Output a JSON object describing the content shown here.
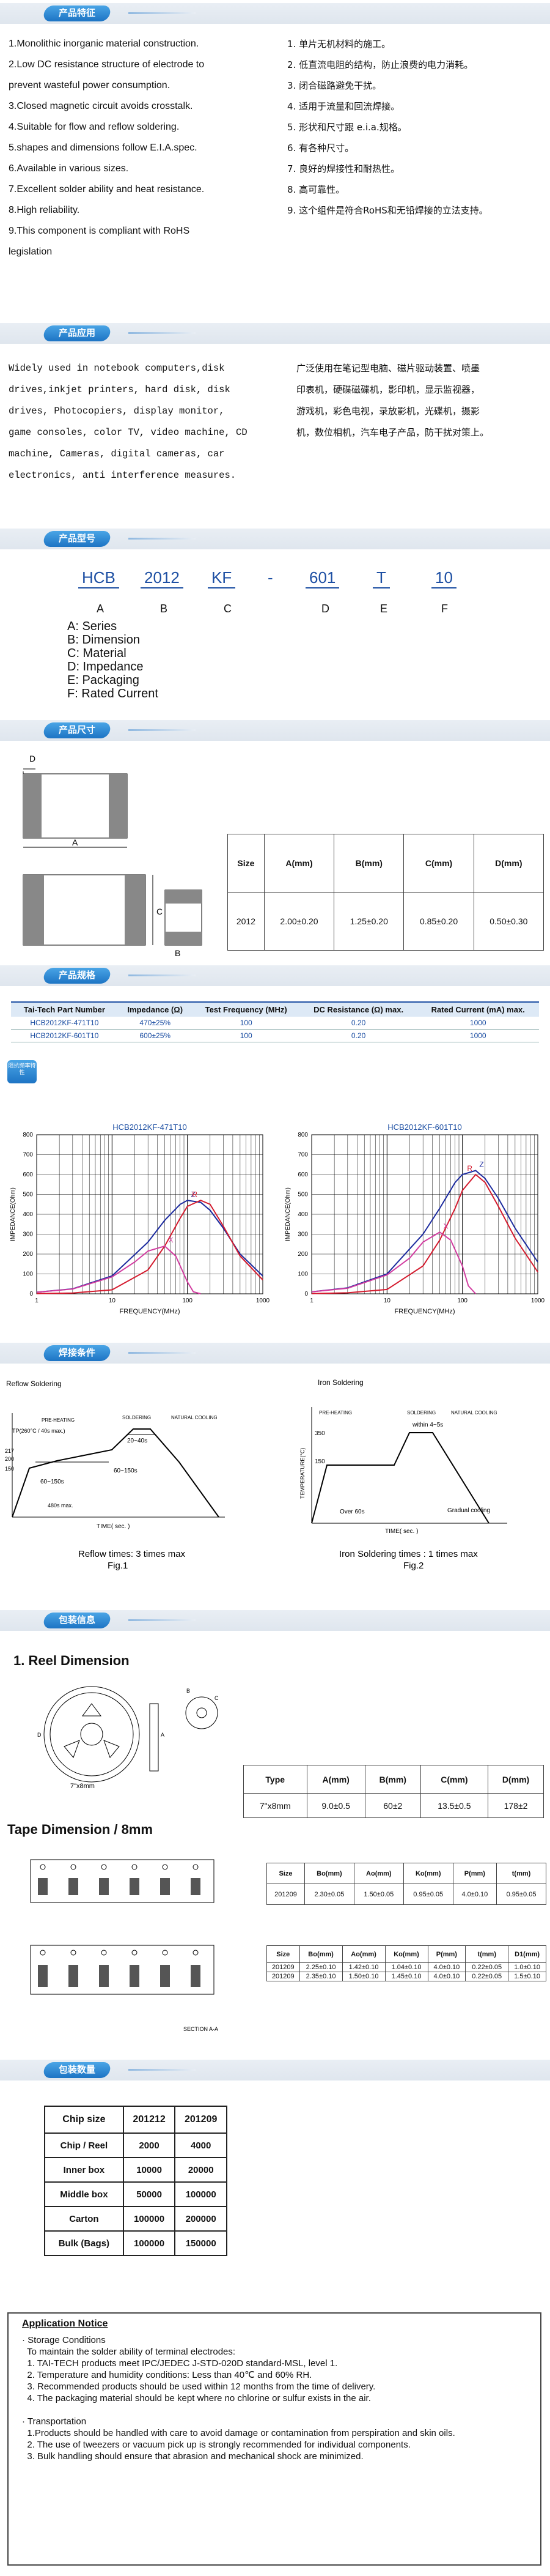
{
  "sections": {
    "features": "产品特征",
    "application": "产品应用",
    "part_number": "产品型号",
    "dimensions": "产品尺寸",
    "specification": "产品规格",
    "soldering": "焊接条件",
    "packaging": "包装信息",
    "quantity": "包装数量"
  },
  "features_en": [
    "1.Monolithic inorganic material construction.",
    "2.Low DC resistance structure of electrode to",
    "prevent wasteful power consumption.",
    "3.Closed magnetic circuit avoids crosstalk.",
    "4.Suitable for flow and reflow soldering.",
    "5.shapes and dimensions follow E.I.A.spec.",
    "6.Available in various sizes.",
    "7.Excellent solder ability and heat resistance.",
    "8.High reliability.",
    "9.This  component  is  compliant  with  RoHS",
    "legislation"
  ],
  "features_cn": [
    "1. 单片无机材料的施工。",
    "2. 低直流电阻的结构，防止浪费的电力消耗。",
    "3. 闭合磁路避免干扰。",
    "4. 适用于流量和回流焊接。",
    "5. 形状和尺寸跟 e.i.a.规格。",
    "6. 有各种尺寸。",
    "7. 良好的焊接性和耐热性。",
    "8. 高可靠性。",
    "9. 这个组件是符合RoHS和无铅焊接的立法支持。"
  ],
  "application_en": [
    "Widely used in notebook computers,disk",
    "drives,inkjet printers, hard disk, disk",
    "drives, Photocopiers, display monitor,",
    "game consoles, color TV, video machine, CD",
    "machine, Cameras, digital cameras, car",
    "electronics, anti interference measures."
  ],
  "application_cn": [
    "广泛使用在笔记型电脑、磁片驱动装置、喷墨",
    "印表机，硬碟磁碟机，影印机，显示监视器，",
    "游戏机，彩色电视，录放影机，光碟机，摄影",
    "机，数位相机，汽车电子产品，防干扰对策上。"
  ],
  "part_number": {
    "codes": [
      "HCB",
      "2012",
      "KF",
      "-",
      "601",
      "T",
      "10"
    ],
    "letters": [
      "A",
      "B",
      "C",
      "",
      "D",
      "E",
      "F"
    ],
    "legend": [
      "A: Series",
      "B: Dimension",
      "C: Material",
      "D: Impedance",
      "E: Packaging",
      "F: Rated Current"
    ]
  },
  "dimension_table": {
    "headers": [
      "Size",
      "A(mm)",
      "B(mm)",
      "C(mm)",
      "D(mm)"
    ],
    "row": [
      "2012",
      "2.00±0.20",
      "1.25±0.20",
      "0.85±0.20",
      "0.50±0.30"
    ],
    "labels": {
      "a": "A",
      "b": "B",
      "c": "C",
      "d": "D"
    }
  },
  "spec_table": {
    "headers": [
      "Tai-Tech Part Number",
      "Impedance (Ω)",
      "Test Frequency (MHz)",
      "DC Resistance (Ω) max.",
      "Rated Current (mA) max."
    ],
    "rows": [
      [
        "HCB2012KF-471T10",
        "470±25%",
        "100",
        "0.20",
        "1000"
      ],
      [
        "HCB2012KF-601T10",
        "600±25%",
        "100",
        "0.20",
        "1000"
      ]
    ]
  },
  "impedance_section_icon": "阻抗频率特性",
  "chart_data": [
    {
      "type": "line",
      "title": "HCB2012KF-471T10",
      "xlabel": "FREQUENCY(MHz)",
      "ylabel": "IMPEDANCE(Ohm)",
      "xscale": "log",
      "xlim": [
        1,
        1000
      ],
      "ylim": [
        0,
        800
      ],
      "xticks": [
        "1",
        "10",
        "100",
        "1000"
      ],
      "yticks": [
        "0",
        "100",
        "200",
        "300",
        "400",
        "500",
        "600",
        "700",
        "800"
      ],
      "series": [
        {
          "name": "Z",
          "color": "#1b2a9e",
          "x": [
            1,
            3,
            10,
            30,
            50,
            80,
            100,
            150,
            200,
            300,
            500,
            1000
          ],
          "y": [
            8,
            25,
            90,
            260,
            370,
            450,
            470,
            460,
            420,
            330,
            200,
            90
          ]
        },
        {
          "name": "R",
          "color": "#d41b2e",
          "x": [
            1,
            3,
            10,
            30,
            50,
            80,
            100,
            150,
            200,
            300,
            500,
            1000
          ],
          "y": [
            1,
            4,
            20,
            120,
            240,
            380,
            440,
            470,
            450,
            340,
            190,
            70
          ]
        },
        {
          "name": "X",
          "color": "#d23ca0",
          "x": [
            1,
            3,
            10,
            20,
            30,
            50,
            70,
            100,
            120,
            150
          ],
          "y": [
            8,
            24,
            85,
            160,
            215,
            240,
            190,
            60,
            10,
            0
          ]
        }
      ]
    },
    {
      "type": "line",
      "title": "HCB2012KF-601T10",
      "xlabel": "FREQUENCY(MHz)",
      "ylabel": "IMPEDANCE(Ohm)",
      "xscale": "log",
      "xlim": [
        1,
        1000
      ],
      "ylim": [
        0,
        800
      ],
      "xticks": [
        "1",
        "10",
        "100",
        "1000"
      ],
      "yticks": [
        "0",
        "100",
        "200",
        "300",
        "400",
        "500",
        "600",
        "700",
        "800"
      ],
      "series": [
        {
          "name": "Z",
          "color": "#1b2a9e",
          "x": [
            1,
            3,
            10,
            30,
            50,
            80,
            100,
            150,
            200,
            300,
            500,
            1000
          ],
          "y": [
            10,
            30,
            100,
            300,
            430,
            560,
            600,
            620,
            580,
            480,
            330,
            160
          ]
        },
        {
          "name": "R",
          "color": "#d41b2e",
          "x": [
            1,
            3,
            10,
            30,
            50,
            80,
            100,
            150,
            200,
            300,
            500,
            1000
          ],
          "y": [
            1,
            5,
            22,
            140,
            270,
            430,
            520,
            600,
            560,
            440,
            280,
            110
          ]
        },
        {
          "name": "X",
          "color": "#d23ca0",
          "x": [
            1,
            3,
            10,
            20,
            30,
            50,
            70,
            100,
            120,
            150
          ],
          "y": [
            10,
            28,
            95,
            180,
            260,
            310,
            270,
            140,
            40,
            0
          ]
        }
      ]
    }
  ],
  "chart_labels": {
    "z": "Z",
    "r": "R",
    "x": "X"
  },
  "reflow": {
    "title": "Reflow Soldering",
    "phases": [
      "PRE-HEATING",
      "SOLDERING",
      "NATURAL COOLING"
    ],
    "temps": [
      "TP(260°C / 40s max.)",
      "217",
      "200",
      "150"
    ],
    "times": [
      "20~40s",
      "60~150s",
      "60~150s",
      "480s max."
    ],
    "axis_y": "TEMPERATURE(°C)",
    "axis_x": "TIME( sec. )",
    "caption": "Reflow times: 3 times max",
    "fig": "Fig.1"
  },
  "iron": {
    "title": "Iron Soldering",
    "phases": [
      "PRE-HEATING",
      "SOLDERING",
      "NATURAL COOLING"
    ],
    "temps": [
      "350",
      "150"
    ],
    "times": [
      "within 4~5s",
      "Over 60s",
      "Gradual cooling"
    ],
    "axis_y": "TEMPERATURE(°C)",
    "axis_x": "TIME( sec. )",
    "caption": "Iron Soldering times : 1 times max",
    "fig": "Fig.2"
  },
  "reel": {
    "title": "1. Reel Dimension",
    "caption": "7\"x8mm",
    "headers": [
      "Type",
      "A(mm)",
      "B(mm)",
      "C(mm)",
      "D(mm)"
    ],
    "row": [
      "7\"x8mm",
      "9.0±0.5",
      "60±2",
      "13.5±0.5",
      "178±2"
    ],
    "reel_labels": {
      "a": "A",
      "b": "B",
      "c": "C",
      "d": "D"
    }
  },
  "tape": {
    "title": "Tape Dimension / 8mm",
    "table1": {
      "headers": [
        "Size",
        "Bo(mm)",
        "Ao(mm)",
        "Ko(mm)",
        "P(mm)",
        "t(mm)"
      ],
      "row": [
        "201209",
        "2.30±0.05",
        "1.50±0.05",
        "0.95±0.05",
        "4.0±0.10",
        "0.95±0.05"
      ]
    },
    "table2": {
      "headers": [
        "Size",
        "Bo(mm)",
        "Ao(mm)",
        "Ko(mm)",
        "P(mm)",
        "t(mm)",
        "D1(mm)"
      ],
      "rows": [
        [
          "201209",
          "2.25±0.10",
          "1.42±0.10",
          "1.04±0.10",
          "4.0±0.10",
          "0.22±0.05",
          "1.0±0.10"
        ],
        [
          "201209",
          "2.35±0.10",
          "1.50±0.10",
          "1.45±0.10",
          "4.0±0.10",
          "0.22±0.05",
          "1.5±0.10"
        ]
      ]
    },
    "section_label": "SECTION A-A"
  },
  "quantity_table": {
    "headers": [
      "Chip size",
      "201212",
      "201209"
    ],
    "rows": [
      [
        "Chip / Reel",
        "2000",
        "4000"
      ],
      [
        "Inner box",
        "10000",
        "20000"
      ],
      [
        "Middle box",
        "50000",
        "100000"
      ],
      [
        "Carton",
        "100000",
        "200000"
      ],
      [
        "Bulk (Bags)",
        "100000",
        "150000"
      ]
    ]
  },
  "notice": {
    "title": "Application Notice",
    "lines": [
      "· Storage Conditions",
      "  To maintain the solder ability of terminal electrodes:",
      "  1. TAI-TECH products meet IPC/JEDEC J-STD-020D standard-MSL, level 1.",
      "  2. Temperature and humidity conditions: Less than 40℃ and 60% RH.",
      "  3. Recommended products should be used within 12 months from the time of delivery.",
      "  4. The packaging material should be kept where no chlorine or sulfur exists in the air.",
      "",
      "· Transportation",
      "  1.Products should be handled with care to avoid damage or contamination from perspiration and skin oils.",
      "  2. The use of tweezers or vacuum pick up is strongly recommended for individual components.",
      "  3. Bulk handling should ensure that abrasion and mechanical shock are minimized."
    ]
  },
  "colors": {
    "accent": "#1d74c4",
    "brand_blue": "#1d4fa3"
  }
}
